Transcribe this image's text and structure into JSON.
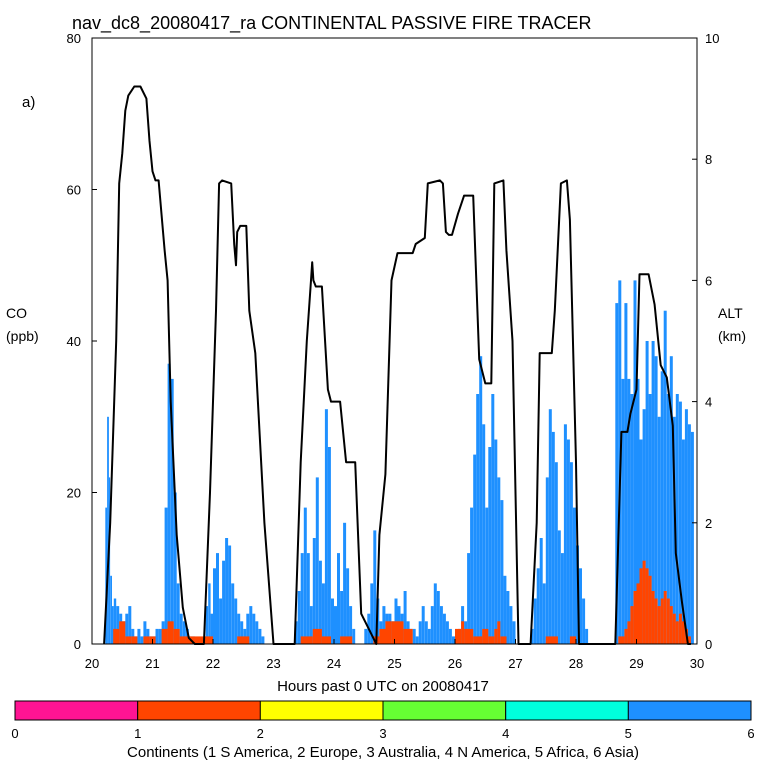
{
  "chart_data": {
    "type": "area",
    "title": "nav_dc8_20080417_ra CONTINENTAL PASSIVE FIRE TRACER",
    "panel_label": "a)",
    "xlabel": "Hours past 0 UTC on 20080417",
    "ylabel_left": [
      "CO",
      "(ppb)"
    ],
    "ylabel_right": [
      "ALT",
      "(km)"
    ],
    "xlim": [
      20,
      30
    ],
    "ylim_left": [
      0,
      80
    ],
    "ylim_right": [
      0,
      10
    ],
    "x_ticks": [
      "20",
      "21",
      "22",
      "23",
      "24",
      "25",
      "26",
      "27",
      "28",
      "29",
      "30"
    ],
    "y_ticks_left": [
      "0",
      "20",
      "40",
      "60",
      "80"
    ],
    "y_ticks_right": [
      "0",
      "2",
      "4",
      "6",
      "8",
      "10"
    ],
    "colorbar": {
      "label": "Continents (1 S America, 2 Europe, 3 Australia, 4 N America, 5 Africa, 6 Asia)",
      "ticks": [
        "0",
        "1",
        "2",
        "3",
        "4",
        "5",
        "6"
      ],
      "colors": [
        "#ff1493",
        "#ff4500",
        "#ffff00",
        "#66ff33",
        "#00ffdd",
        "#1e90ff"
      ]
    },
    "series": [
      {
        "name": "Asia CO (stacked total)",
        "color": "#1e90ff",
        "x": [
          20.2,
          20.22,
          20.25,
          20.28,
          20.3,
          20.33,
          20.36,
          20.4,
          20.45,
          20.5,
          20.55,
          20.6,
          20.65,
          20.7,
          20.75,
          20.8,
          20.85,
          20.9,
          20.95,
          21.0,
          21.05,
          21.1,
          21.15,
          21.2,
          21.25,
          21.3,
          21.35,
          21.4,
          21.45,
          21.5,
          21.55,
          21.6,
          21.7,
          21.85,
          21.88,
          21.92,
          21.96,
          22.0,
          22.05,
          22.1,
          22.15,
          22.2,
          22.25,
          22.3,
          22.35,
          22.4,
          22.45,
          22.5,
          22.55,
          22.6,
          22.65,
          22.7,
          22.75,
          22.8,
          22.85,
          22.9,
          23.0,
          23.3,
          23.35,
          23.4,
          23.45,
          23.5,
          23.55,
          23.6,
          23.65,
          23.7,
          23.75,
          23.8,
          23.85,
          23.9,
          23.95,
          24.0,
          24.05,
          24.1,
          24.15,
          24.2,
          24.25,
          24.3,
          24.35,
          24.4,
          24.5,
          24.55,
          24.6,
          24.65,
          24.7,
          24.75,
          24.8,
          24.85,
          24.9,
          24.95,
          25.0,
          25.05,
          25.1,
          25.15,
          25.2,
          25.25,
          25.3,
          25.35,
          25.4,
          25.45,
          25.5,
          25.55,
          25.6,
          25.65,
          25.7,
          25.75,
          25.8,
          25.85,
          25.9,
          25.95,
          26.0,
          26.05,
          26.1,
          26.15,
          26.2,
          26.25,
          26.3,
          26.35,
          26.4,
          26.45,
          26.5,
          26.55,
          26.6,
          26.65,
          26.7,
          26.75,
          26.8,
          26.85,
          26.9,
          26.95,
          27.0,
          27.2,
          27.25,
          27.3,
          27.35,
          27.4,
          27.45,
          27.5,
          27.55,
          27.6,
          27.65,
          27.7,
          27.75,
          27.8,
          27.85,
          27.9,
          27.95,
          28.0,
          28.05,
          28.1,
          28.15,
          28.2,
          28.3,
          28.6,
          28.65,
          28.7,
          28.75,
          28.8,
          28.85,
          28.9,
          28.95,
          29.0,
          29.05,
          29.1,
          29.15,
          29.2,
          29.25,
          29.3,
          29.35,
          29.4,
          29.45,
          29.5,
          29.55,
          29.6,
          29.65,
          29.7,
          29.75,
          29.8,
          29.85,
          29.9,
          29.95
        ],
        "values": [
          0,
          18,
          30,
          22,
          9,
          5,
          6,
          5,
          4,
          3,
          4,
          5,
          2,
          1,
          2,
          1,
          3,
          2,
          1,
          1,
          2,
          2,
          3,
          18,
          37,
          35,
          20,
          8,
          4,
          3,
          2,
          1,
          0,
          0,
          5,
          8,
          4,
          10,
          12,
          6,
          11,
          14,
          13,
          8,
          6,
          4,
          3,
          2,
          4,
          5,
          4,
          3,
          2,
          1,
          0,
          0,
          0,
          0,
          3,
          7,
          12,
          18,
          12,
          5,
          14,
          22,
          11,
          8,
          31,
          26,
          6,
          5,
          12,
          7,
          16,
          10,
          5,
          2,
          0,
          0,
          2,
          4,
          8,
          15,
          6,
          3,
          5,
          4,
          4,
          3,
          6,
          5,
          4,
          7,
          3,
          2,
          2,
          1,
          3,
          5,
          3,
          2,
          5,
          8,
          7,
          5,
          4,
          3,
          2,
          1,
          0,
          2,
          5,
          3,
          12,
          18,
          25,
          33,
          38,
          29,
          18,
          26,
          33,
          27,
          22,
          19,
          9,
          7,
          5,
          3,
          0,
          0,
          2,
          6,
          10,
          14,
          8,
          22,
          31,
          28,
          24,
          15,
          12,
          29,
          27,
          24,
          18,
          13,
          10,
          6,
          2,
          0,
          0,
          0,
          45,
          48,
          35,
          45,
          35,
          33,
          48,
          35,
          27,
          31,
          40,
          33,
          40,
          38,
          30,
          36,
          44,
          33,
          38,
          30,
          33,
          32,
          27,
          31,
          29,
          28,
          0
        ]
      },
      {
        "name": "Europe CO",
        "color": "#ff4500",
        "x": [
          20.25,
          20.35,
          20.45,
          20.55,
          20.65,
          20.75,
          20.85,
          20.95,
          21.05,
          21.15,
          21.25,
          21.35,
          21.45,
          22.0,
          22.2,
          22.4,
          22.6,
          23.3,
          23.45,
          23.65,
          23.8,
          23.95,
          24.1,
          24.3,
          24.55,
          24.65,
          24.75,
          24.85,
          24.95,
          25.05,
          25.15,
          25.3,
          25.6,
          25.9,
          26.0,
          26.1,
          26.15,
          26.3,
          26.45,
          26.55,
          26.65,
          26.7,
          26.75,
          26.85,
          27.0,
          27.3,
          27.5,
          27.7,
          27.9,
          28.0,
          28.6,
          28.7,
          28.8,
          28.85,
          28.9,
          28.95,
          29.0,
          29.05,
          29.1,
          29.15,
          29.2,
          29.25,
          29.3,
          29.35,
          29.4,
          29.45,
          29.5,
          29.55,
          29.6,
          29.65,
          29.7,
          29.75,
          29.8,
          29.85,
          29.9
        ],
        "values": [
          0,
          2,
          3,
          1,
          1,
          0,
          1,
          1,
          0,
          2,
          3,
          2,
          1,
          0,
          0,
          1,
          0,
          0,
          1,
          2,
          1,
          0,
          1,
          0,
          0,
          1,
          2,
          3,
          3,
          3,
          2,
          0,
          0,
          0,
          2,
          3,
          2,
          1,
          2,
          1,
          2,
          3,
          1,
          0,
          0,
          0,
          1,
          0,
          1,
          0,
          0,
          1,
          2,
          3,
          5,
          7,
          8,
          10,
          11,
          10,
          9,
          7,
          6,
          5,
          6,
          7,
          6,
          5,
          4,
          3,
          4,
          3,
          2,
          1,
          0
        ]
      }
    ],
    "altitude_series": {
      "name": "ALT (km)",
      "color": "#000000",
      "x": [
        20.2,
        20.3,
        20.4,
        20.45,
        20.5,
        20.55,
        20.6,
        20.7,
        20.8,
        20.9,
        20.95,
        21.0,
        21.05,
        21.1,
        21.2,
        21.25,
        21.3,
        21.4,
        21.5,
        21.6,
        21.7,
        21.85,
        21.95,
        22.05,
        22.1,
        22.15,
        22.3,
        22.35,
        22.38,
        22.4,
        22.45,
        22.55,
        22.6,
        22.7,
        22.85,
        23.0,
        23.35,
        23.45,
        23.55,
        23.62,
        23.64,
        23.66,
        23.7,
        23.8,
        23.9,
        23.95,
        24.1,
        24.2,
        24.35,
        24.45,
        24.7,
        24.75,
        24.85,
        24.95,
        25.05,
        25.1,
        25.3,
        25.35,
        25.5,
        25.55,
        25.75,
        25.8,
        25.85,
        25.9,
        25.95,
        26.05,
        26.15,
        26.3,
        26.4,
        26.5,
        26.6,
        26.65,
        26.8,
        26.85,
        26.95,
        27.05,
        27.25,
        27.35,
        27.4,
        27.6,
        27.65,
        27.75,
        27.85,
        27.9,
        28.0,
        28.05,
        28.1,
        28.2,
        28.65,
        28.75,
        28.85,
        28.9,
        29.0,
        29.05,
        29.2,
        29.3,
        29.4,
        29.5,
        29.6,
        29.65,
        29.75,
        29.85,
        29.9
      ],
      "values": [
        0,
        2,
        5,
        7.6,
        8.1,
        8.8,
        9.05,
        9.2,
        9.2,
        9.0,
        8.3,
        7.8,
        7.65,
        7.65,
        6.5,
        6.0,
        4.0,
        1.8,
        0.6,
        0.1,
        0,
        0,
        2.5,
        5.5,
        7.6,
        7.65,
        7.6,
        6.6,
        6.25,
        6.8,
        6.9,
        6.9,
        5.5,
        4.8,
        2.0,
        0,
        0,
        3.0,
        5.0,
        6.0,
        6.3,
        6.0,
        5.9,
        5.9,
        4.2,
        4.0,
        4.0,
        3.0,
        3.0,
        0.5,
        0,
        1.8,
        2.8,
        6.0,
        6.45,
        6.45,
        6.45,
        6.6,
        6.7,
        7.6,
        7.65,
        7.6,
        6.8,
        6.75,
        6.75,
        7.1,
        7.4,
        7.4,
        4.7,
        4.3,
        4.3,
        7.6,
        7.65,
        6.5,
        5.0,
        0,
        0,
        2.0,
        4.8,
        4.8,
        5.5,
        7.6,
        7.65,
        7.0,
        3.0,
        0,
        0,
        0,
        0,
        3.5,
        3.5,
        3.8,
        4.2,
        6.1,
        6.1,
        5.6,
        4.6,
        4.4,
        3.6,
        1.5,
        0.7,
        0,
        0
      ]
    }
  }
}
